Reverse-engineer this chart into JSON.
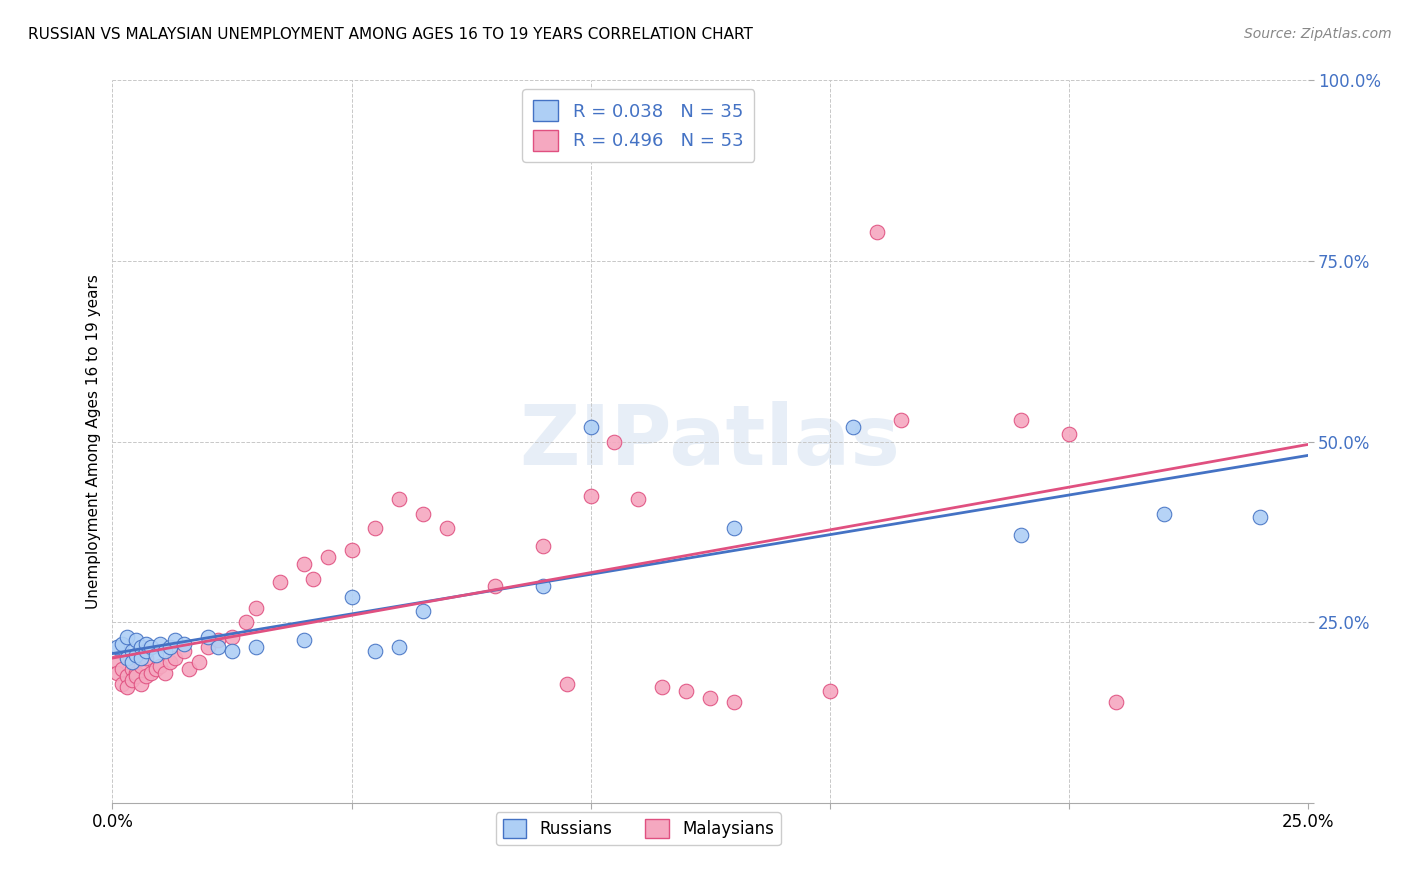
{
  "title": "RUSSIAN VS MALAYSIAN UNEMPLOYMENT AMONG AGES 16 TO 19 YEARS CORRELATION CHART",
  "source": "Source: ZipAtlas.com",
  "ylabel": "Unemployment Among Ages 16 to 19 years",
  "xlim": [
    0.0,
    0.25
  ],
  "ylim": [
    0.0,
    1.0
  ],
  "xticks": [
    0.0,
    0.05,
    0.1,
    0.15,
    0.2,
    0.25
  ],
  "yticks": [
    0.0,
    0.25,
    0.5,
    0.75,
    1.0
  ],
  "xtick_labels": [
    "0.0%",
    "",
    "",
    "",
    "",
    "25.0%"
  ],
  "ytick_labels": [
    "",
    "25.0%",
    "50.0%",
    "75.0%",
    "100.0%"
  ],
  "russian_R": 0.038,
  "russian_N": 35,
  "malaysian_R": 0.496,
  "malaysian_N": 53,
  "russian_color": "#aecff5",
  "russian_line_color": "#4472c4",
  "malaysian_color": "#f5a8c0",
  "malaysian_line_color": "#e05080",
  "background_color": "#ffffff",
  "grid_color": "#c8c8c8",
  "watermark": "ZIPatlas",
  "russians_x": [
    0.001,
    0.002,
    0.003,
    0.003,
    0.004,
    0.004,
    0.005,
    0.005,
    0.006,
    0.006,
    0.007,
    0.007,
    0.008,
    0.009,
    0.01,
    0.011,
    0.012,
    0.013,
    0.015,
    0.02,
    0.022,
    0.025,
    0.03,
    0.04,
    0.05,
    0.055,
    0.06,
    0.065,
    0.09,
    0.1,
    0.13,
    0.155,
    0.19,
    0.22,
    0.24
  ],
  "russians_y": [
    0.215,
    0.22,
    0.2,
    0.23,
    0.21,
    0.195,
    0.205,
    0.225,
    0.215,
    0.2,
    0.21,
    0.22,
    0.215,
    0.205,
    0.22,
    0.21,
    0.215,
    0.225,
    0.22,
    0.23,
    0.215,
    0.21,
    0.215,
    0.225,
    0.285,
    0.21,
    0.215,
    0.265,
    0.3,
    0.52,
    0.38,
    0.52,
    0.37,
    0.4,
    0.395
  ],
  "malaysians_x": [
    0.001,
    0.001,
    0.002,
    0.002,
    0.003,
    0.003,
    0.004,
    0.004,
    0.005,
    0.005,
    0.006,
    0.006,
    0.007,
    0.007,
    0.008,
    0.009,
    0.01,
    0.011,
    0.012,
    0.013,
    0.015,
    0.016,
    0.018,
    0.02,
    0.022,
    0.025,
    0.028,
    0.03,
    0.035,
    0.04,
    0.042,
    0.045,
    0.05,
    0.055,
    0.06,
    0.065,
    0.07,
    0.08,
    0.09,
    0.095,
    0.1,
    0.105,
    0.11,
    0.115,
    0.12,
    0.125,
    0.13,
    0.15,
    0.16,
    0.165,
    0.19,
    0.2,
    0.21
  ],
  "malaysians_y": [
    0.195,
    0.18,
    0.185,
    0.165,
    0.175,
    0.16,
    0.185,
    0.17,
    0.18,
    0.175,
    0.19,
    0.165,
    0.2,
    0.175,
    0.18,
    0.185,
    0.19,
    0.18,
    0.195,
    0.2,
    0.21,
    0.185,
    0.195,
    0.215,
    0.225,
    0.23,
    0.25,
    0.27,
    0.305,
    0.33,
    0.31,
    0.34,
    0.35,
    0.38,
    0.42,
    0.4,
    0.38,
    0.3,
    0.355,
    0.165,
    0.425,
    0.5,
    0.42,
    0.16,
    0.155,
    0.145,
    0.14,
    0.155,
    0.79,
    0.53,
    0.53,
    0.51,
    0.14
  ]
}
